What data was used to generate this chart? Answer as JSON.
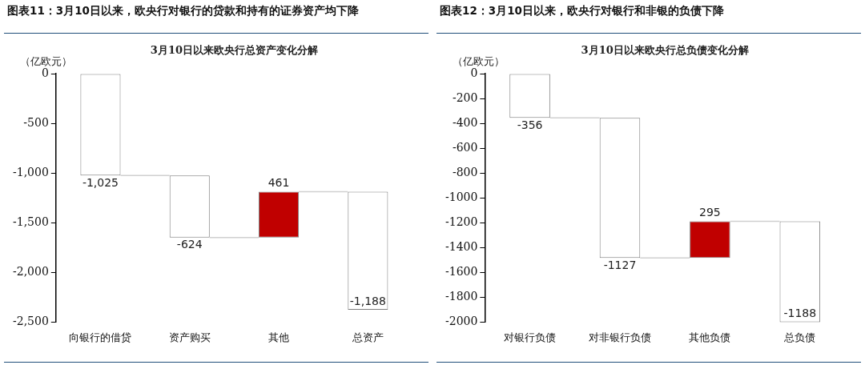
{
  "chart_data": [
    {
      "type": "bar",
      "title": "图表11：3月10日以来，欧央行对银行的贷款和持有的证券资产均下降",
      "subtitle": "3月10日以来欧央行总资产变化分解",
      "ylabel": "（亿欧元）",
      "categories": [
        "向银行的借贷",
        "资产购买",
        "其他",
        "总资产"
      ],
      "values": [
        -1025,
        -624,
        461,
        -1188
      ],
      "base": [
        0,
        -1025,
        -1649,
        -1188
      ],
      "colors": [
        "#ffffff",
        "#ffffff",
        "#c00000",
        "#ffffff"
      ],
      "value_labels": [
        "-1,025",
        "-624",
        "461",
        "-1,188"
      ],
      "ylim": [
        -2500,
        0
      ],
      "yticks": [
        {
          "value": 0,
          "label": "0"
        },
        {
          "value": -500,
          "label": "-500"
        },
        {
          "value": -1000,
          "label": "-1,000"
        },
        {
          "value": -1500,
          "label": "-1,500"
        },
        {
          "value": -2000,
          "label": "-2,000"
        },
        {
          "value": -2500,
          "label": "-2,500"
        }
      ],
      "grid": false,
      "legend": false
    },
    {
      "type": "bar",
      "title": "图表12：3月10日以来，欧央行对银行和非银的负债下降",
      "subtitle": "3月10日以来欧央行总负债变化分解",
      "ylabel": "（亿欧元）",
      "categories": [
        "对银行负债",
        "对非银行负债",
        "其他负债",
        "总负债"
      ],
      "values": [
        -356,
        -1127,
        295,
        -812
      ],
      "base": [
        0,
        -356,
        -1483,
        -1188
      ],
      "colors": [
        "#ffffff",
        "#ffffff",
        "#c00000",
        "#ffffff"
      ],
      "value_labels": [
        "-356",
        "-1127",
        "295",
        null
      ],
      "annotations": [
        {
          "text": "-1188",
          "x": "总负债",
          "y": -2000
        }
      ],
      "ylim": [
        -2000,
        0
      ],
      "yticks": [
        0,
        -200,
        -400,
        -600,
        -800,
        -1000,
        -1200,
        -1400,
        -1600,
        -1800,
        -2000
      ],
      "grid": false,
      "legend": false
    }
  ]
}
